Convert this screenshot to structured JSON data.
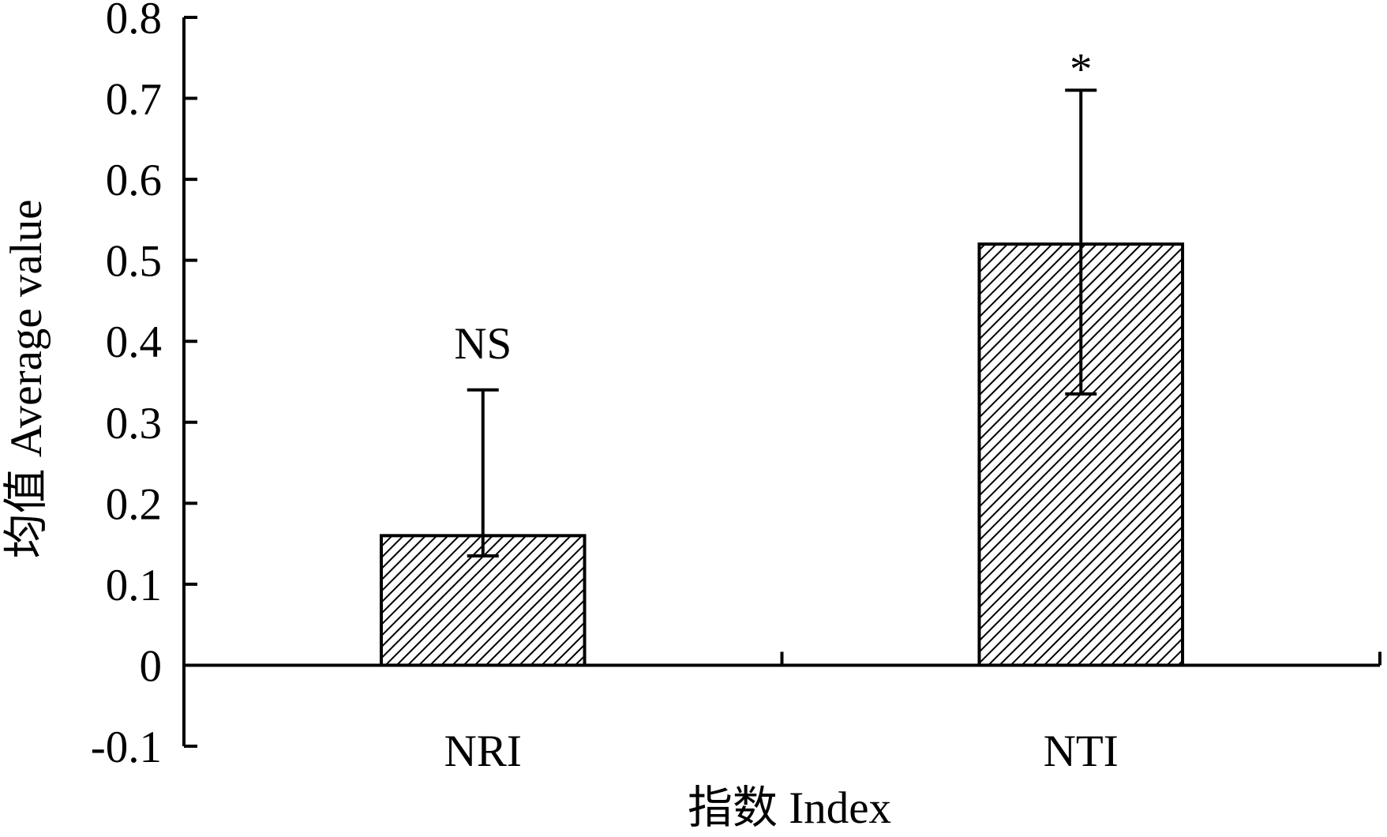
{
  "chart_data": {
    "type": "bar",
    "categories": [
      "NRI",
      "NTI"
    ],
    "values": [
      0.16,
      0.52
    ],
    "error_low": [
      0.025,
      0.185
    ],
    "error_high": [
      0.18,
      0.19
    ],
    "annotations": [
      "NS",
      "*"
    ],
    "xlabel": "指数 Index",
    "ylabel": "均值 Average value",
    "ylim": [
      -0.1,
      0.8
    ],
    "yticks": [
      "-0.1",
      "0",
      "0.1",
      "0.2",
      "0.3",
      "0.4",
      "0.5",
      "0.6",
      "0.7",
      "0.8"
    ],
    "grid": false,
    "bar_fill": "hatched-diagonal",
    "colors": {
      "axis": "#000000",
      "bar_fill_background": "#ffffff",
      "bar_hatch": "#000000"
    }
  }
}
